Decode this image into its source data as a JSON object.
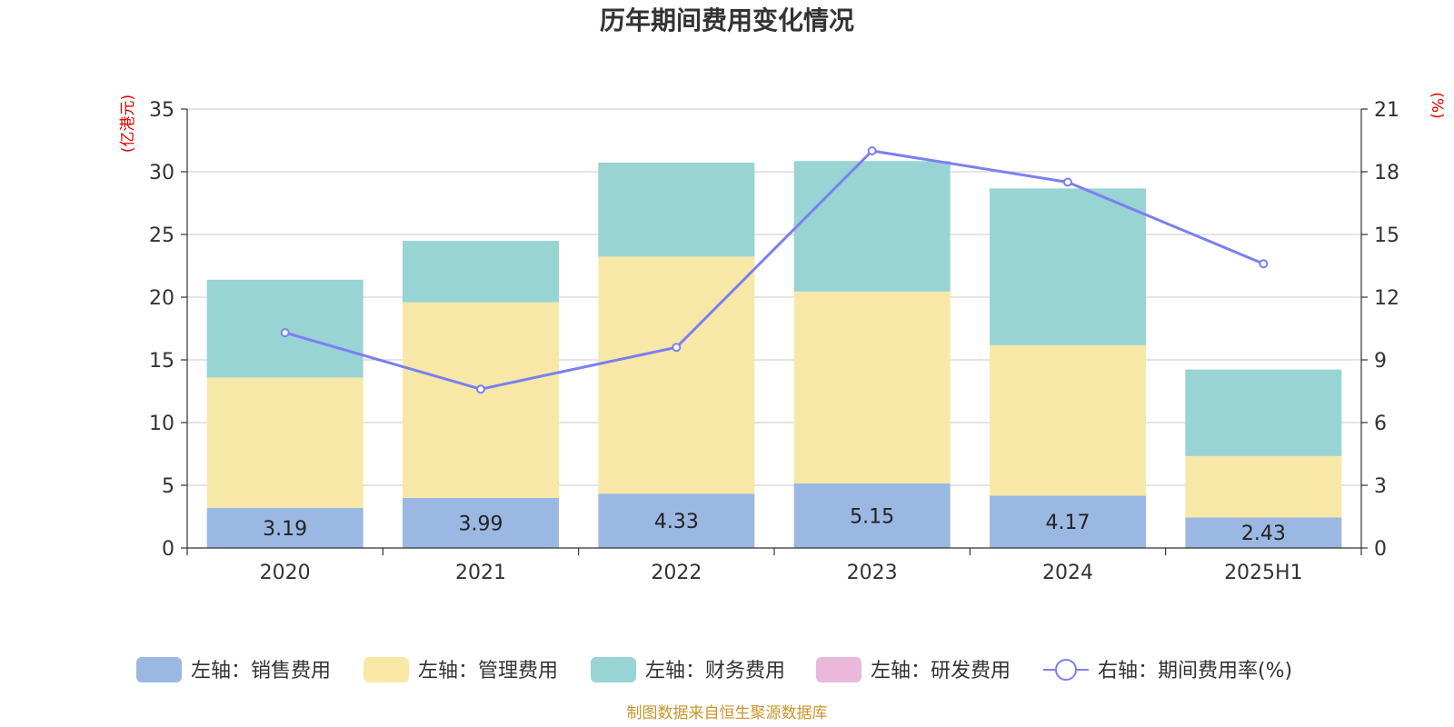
{
  "chart_data": {
    "type": "bar",
    "title": "历年期间费用变化情况",
    "categories": [
      "2020",
      "2021",
      "2022",
      "2023",
      "2024",
      "2025H1"
    ],
    "left_axis": {
      "unit": "(亿港元)",
      "ylim": [
        0,
        35
      ],
      "ticks": [
        "0",
        "5",
        "10",
        "15",
        "20",
        "25",
        "30",
        "35"
      ]
    },
    "right_axis": {
      "unit": "(%)",
      "ylim": [
        0,
        21
      ],
      "ticks": [
        "0",
        "3",
        "6",
        "9",
        "12",
        "15",
        "18",
        "21"
      ]
    },
    "series": [
      {
        "name": "左轴：销售费用",
        "kind": "bar",
        "stack": true,
        "color": "#9bb8e3",
        "values": [
          3.19,
          3.99,
          4.33,
          5.15,
          4.17,
          2.43
        ],
        "labels": [
          "3.19",
          "3.99",
          "4.33",
          "5.15",
          "4.17",
          "2.43"
        ]
      },
      {
        "name": "左轴：管理费用",
        "kind": "bar",
        "stack": true,
        "color": "#f8e8a8",
        "values": [
          10.4,
          15.6,
          18.9,
          15.3,
          12.0,
          4.9
        ]
      },
      {
        "name": "左轴：财务费用",
        "kind": "bar",
        "stack": true,
        "color": "#98d4d4",
        "values": [
          7.8,
          4.9,
          7.5,
          10.4,
          12.5,
          6.9
        ]
      },
      {
        "name": "左轴：研发费用",
        "kind": "bar",
        "stack": true,
        "color": "#e9b8da",
        "values": [
          0,
          0,
          0,
          0,
          0,
          0
        ]
      },
      {
        "name": "右轴：期间费用率(%)",
        "kind": "line",
        "axis": "right",
        "color": "#7b7ff0",
        "values": [
          10.3,
          7.6,
          9.6,
          19.0,
          17.5,
          13.6
        ]
      }
    ],
    "source": "制图数据来自恒生聚源数据库"
  }
}
